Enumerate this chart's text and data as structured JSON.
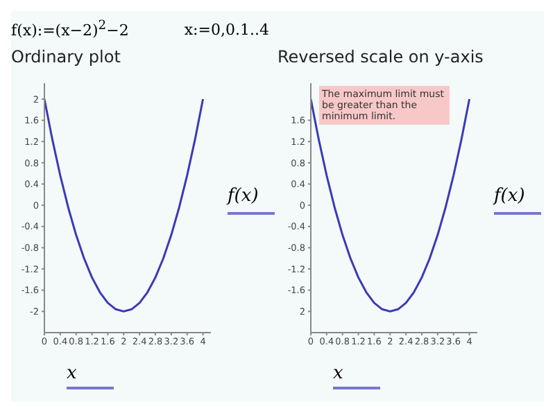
{
  "chart_data": [
    {
      "type": "line",
      "title": "Ordinary plot",
      "xlabel": "x",
      "ylabel": "f(x)",
      "annotations": [
        "f(x):=(x−2)$^{2}$−2",
        "x:=0,0.1..4"
      ],
      "x": [
        0,
        0.2,
        0.4,
        0.6,
        0.8,
        1,
        1.2,
        1.4,
        1.6,
        1.8,
        2,
        2.2,
        2.4,
        2.6,
        2.8,
        3,
        3.2,
        3.4,
        3.6,
        3.8,
        4
      ],
      "series": [
        {
          "color": "#3a3ab4",
          "values": [
            2,
            1.24,
            0.56,
            -0.04,
            -0.56,
            -1,
            -1.36,
            -1.64,
            -1.84,
            -1.96,
            -2,
            -1.96,
            -1.84,
            -1.64,
            -1.36,
            -1,
            -0.56,
            -0.04,
            0.56,
            1.24,
            2
          ]
        }
      ],
      "xlim": [
        0,
        4.2
      ],
      "xticks": [
        0,
        0.4,
        0.8,
        1.2,
        1.6,
        2,
        2.4,
        2.8,
        3.2,
        3.6,
        4
      ],
      "ylim": [
        -2.4,
        2.3
      ],
      "yticks": [
        -2,
        -1.6,
        -1.2,
        -0.8,
        -0.4,
        0,
        0.4,
        0.8,
        1.2,
        1.6,
        2
      ]
    },
    {
      "type": "line",
      "title": "Reversed scale on y-axis",
      "xlabel": "x",
      "ylabel": "f(x)",
      "annotations": [
        "The maximum limit must be greater than the minimum limit."
      ],
      "x": [
        0,
        0.2,
        0.4,
        0.6,
        0.8,
        1,
        1.2,
        1.4,
        1.6,
        1.8,
        2,
        2.2,
        2.4,
        2.6,
        2.8,
        3,
        3.2,
        3.4,
        3.6,
        3.8,
        4
      ],
      "series": [
        {
          "color": "#3a3ab4",
          "values": [
            2,
            1.24,
            0.56,
            -0.04,
            -0.56,
            -1,
            -1.36,
            -1.64,
            -1.84,
            -1.96,
            -2,
            -1.96,
            -1.84,
            -1.64,
            -1.36,
            -1,
            -0.56,
            -0.04,
            0.56,
            1.24,
            2
          ]
        }
      ],
      "xlim": [
        0,
        4.2
      ],
      "xticks": [
        0,
        0.4,
        0.8,
        1.2,
        1.6,
        2,
        2.4,
        2.8,
        3.2,
        3.6,
        4
      ],
      "ylim": [
        -2.4,
        2.3
      ],
      "yticks": [
        {
          "value": -2,
          "label": "2"
        },
        -1.6,
        -1.2,
        -0.8,
        -0.4,
        0,
        0.4,
        0.8,
        1.2,
        1.6
      ]
    }
  ]
}
